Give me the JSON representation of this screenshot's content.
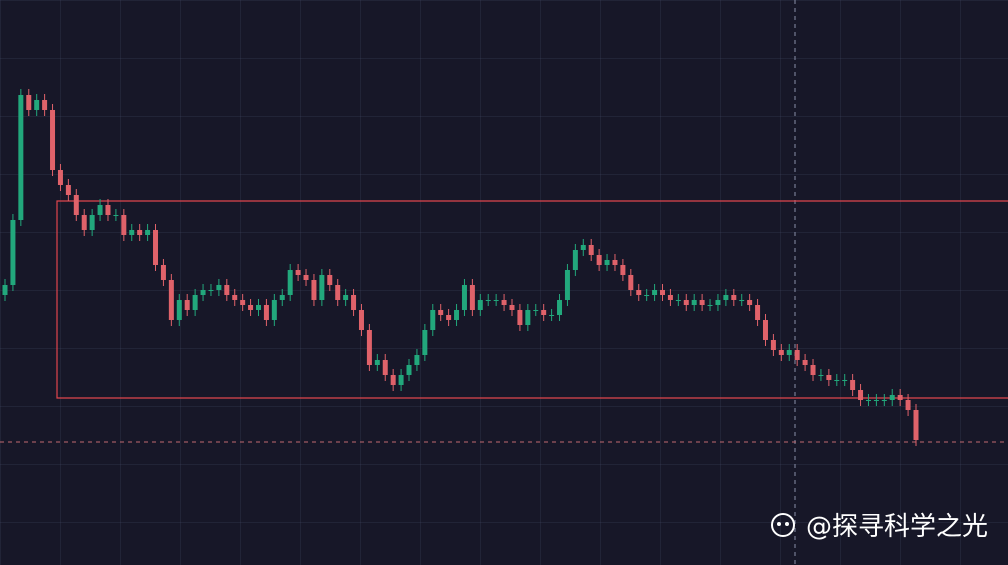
{
  "chart_data": {
    "type": "candlestick",
    "up_color": "#22a87c",
    "down_color": "#e0626a",
    "ylim": [
      0,
      565
    ],
    "open": [
      270,
      280,
      345,
      470,
      455,
      465,
      455,
      395,
      380,
      370,
      350,
      335,
      350,
      360,
      350,
      350,
      330,
      335,
      330,
      335,
      300,
      285,
      245,
      265,
      255,
      270,
      275,
      275,
      280,
      270,
      265,
      260,
      255,
      260,
      245,
      265,
      270,
      295,
      290,
      285,
      265,
      290,
      280,
      265,
      270,
      255,
      235,
      200,
      205,
      190,
      180,
      190,
      200,
      210,
      235,
      255,
      250,
      245,
      255,
      280,
      255,
      265,
      265,
      265,
      260,
      255,
      240,
      255,
      255,
      250,
      250,
      265,
      295,
      315,
      320,
      310,
      300,
      305,
      300,
      290,
      275,
      270,
      270,
      275,
      270,
      265,
      265,
      260,
      265,
      260,
      260,
      265,
      270,
      265,
      265,
      260,
      245,
      225,
      215,
      210,
      215,
      205,
      200,
      190,
      190,
      185,
      185,
      185,
      175,
      165,
      165,
      165,
      165,
      170,
      165,
      155
    ],
    "close": [
      280,
      345,
      470,
      455,
      465,
      455,
      395,
      380,
      370,
      350,
      335,
      350,
      360,
      350,
      350,
      330,
      335,
      330,
      335,
      300,
      285,
      245,
      265,
      255,
      270,
      275,
      275,
      280,
      270,
      265,
      260,
      255,
      260,
      245,
      265,
      270,
      295,
      290,
      285,
      265,
      290,
      280,
      265,
      270,
      255,
      235,
      200,
      205,
      190,
      180,
      190,
      200,
      210,
      235,
      255,
      250,
      245,
      255,
      280,
      255,
      265,
      265,
      265,
      260,
      255,
      240,
      255,
      255,
      250,
      250,
      265,
      295,
      315,
      320,
      310,
      300,
      305,
      300,
      290,
      275,
      270,
      270,
      275,
      270,
      265,
      265,
      260,
      265,
      260,
      260,
      265,
      270,
      265,
      265,
      260,
      245,
      225,
      215,
      210,
      215,
      205,
      200,
      190,
      190,
      185,
      185,
      185,
      175,
      165,
      165,
      165,
      165,
      170,
      165,
      155,
      125
    ],
    "high": [
      286,
      351,
      476,
      476,
      471,
      471,
      461,
      401,
      386,
      376,
      356,
      356,
      366,
      366,
      356,
      356,
      341,
      341,
      341,
      341,
      306,
      291,
      271,
      271,
      276,
      281,
      281,
      286,
      286,
      276,
      271,
      266,
      266,
      266,
      271,
      276,
      301,
      301,
      296,
      291,
      296,
      296,
      286,
      276,
      276,
      261,
      241,
      211,
      211,
      196,
      196,
      206,
      216,
      241,
      261,
      261,
      256,
      261,
      286,
      286,
      271,
      271,
      271,
      271,
      266,
      261,
      261,
      261,
      261,
      256,
      271,
      301,
      321,
      326,
      326,
      316,
      311,
      311,
      306,
      296,
      281,
      276,
      281,
      281,
      276,
      271,
      271,
      271,
      271,
      266,
      271,
      276,
      276,
      271,
      271,
      266,
      251,
      231,
      221,
      221,
      221,
      211,
      206,
      196,
      196,
      191,
      191,
      191,
      181,
      171,
      171,
      171,
      176,
      176,
      171,
      161
    ],
    "low": [
      264,
      274,
      339,
      449,
      449,
      449,
      389,
      374,
      364,
      344,
      329,
      329,
      344,
      344,
      344,
      324,
      324,
      324,
      324,
      294,
      279,
      239,
      239,
      249,
      249,
      264,
      269,
      269,
      264,
      259,
      254,
      249,
      249,
      239,
      239,
      259,
      264,
      284,
      279,
      259,
      259,
      274,
      259,
      259,
      249,
      229,
      194,
      194,
      184,
      174,
      174,
      184,
      194,
      204,
      229,
      244,
      239,
      239,
      249,
      249,
      249,
      259,
      259,
      254,
      249,
      234,
      234,
      249,
      244,
      244,
      244,
      259,
      289,
      309,
      304,
      294,
      294,
      294,
      284,
      269,
      264,
      264,
      264,
      264,
      259,
      259,
      254,
      254,
      254,
      254,
      254,
      259,
      259,
      259,
      254,
      239,
      219,
      209,
      204,
      204,
      199,
      194,
      184,
      184,
      179,
      179,
      179,
      169,
      159,
      159,
      159,
      159,
      159,
      159,
      149,
      119
    ]
  },
  "watermark": "@探寻科学之光"
}
